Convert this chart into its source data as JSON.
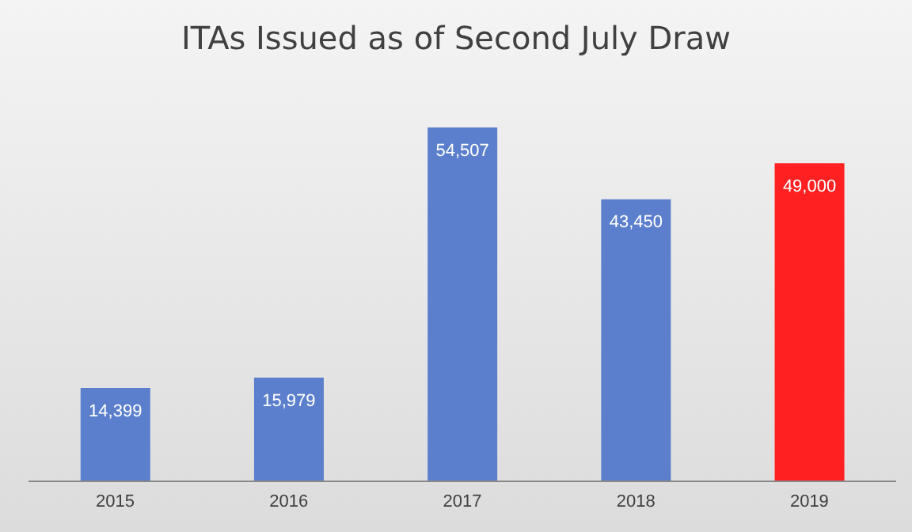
{
  "chart_data": {
    "type": "bar",
    "title": "ITAs Issued as of Second July Draw",
    "categories": [
      "2015",
      "2016",
      "2017",
      "2018",
      "2019"
    ],
    "values": [
      14399,
      15979,
      54507,
      43450,
      49000
    ],
    "value_labels": [
      "14,399",
      "15,979",
      "54,507",
      "43,450",
      "49,000"
    ],
    "colors": [
      "#5b7fcc",
      "#5b7fcc",
      "#5b7fcc",
      "#5b7fcc",
      "#ff2121"
    ],
    "tick_labels": "x"
  }
}
